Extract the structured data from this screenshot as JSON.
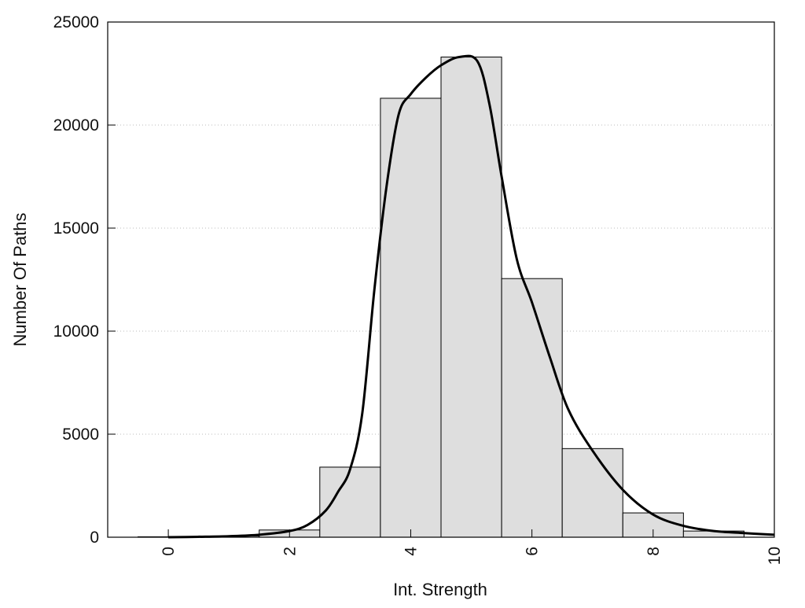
{
  "chart_data": {
    "type": "bar",
    "title": "",
    "xlabel": "Int. Strength",
    "ylabel": "Number Of Paths",
    "xlim": [
      -1,
      10
    ],
    "ylim": [
      0,
      25000
    ],
    "x_ticks": [
      0,
      2,
      4,
      6,
      8,
      10
    ],
    "x_tick_labels": [
      "0",
      "2",
      "4",
      "6",
      "8",
      "10"
    ],
    "y_ticks": [
      0,
      5000,
      10000,
      15000,
      20000,
      25000
    ],
    "y_tick_labels": [
      "0",
      "5000",
      "10000",
      "15000",
      "20000",
      "25000"
    ],
    "grid": "horizontal-dotted",
    "legend": "none",
    "bars": {
      "centers": [
        0,
        1,
        2,
        3,
        4,
        5,
        6,
        7,
        8,
        9
      ],
      "width": 1,
      "values": [
        20,
        60,
        350,
        3400,
        21300,
        23300,
        12550,
        4300,
        1180,
        300
      ],
      "fill": "#dedede",
      "stroke": "#000000"
    },
    "curve": {
      "x": [
        0,
        0.5,
        1,
        1.5,
        2,
        2.3,
        2.6,
        2.8,
        3,
        3.2,
        3.4,
        3.6,
        3.8,
        4,
        4.25,
        4.5,
        4.8,
        5.1,
        5.3,
        5.5,
        5.75,
        6,
        6.3,
        6.6,
        7,
        7.5,
        8,
        8.5,
        9,
        9.5,
        10
      ],
      "y": [
        0,
        20,
        50,
        120,
        300,
        600,
        1300,
        2200,
        3300,
        6000,
        12000,
        17000,
        20500,
        21500,
        22300,
        22900,
        23300,
        23100,
        21000,
        17500,
        13500,
        11400,
        8700,
        6200,
        4200,
        2300,
        1100,
        550,
        300,
        200,
        120
      ],
      "color": "#000000"
    }
  }
}
